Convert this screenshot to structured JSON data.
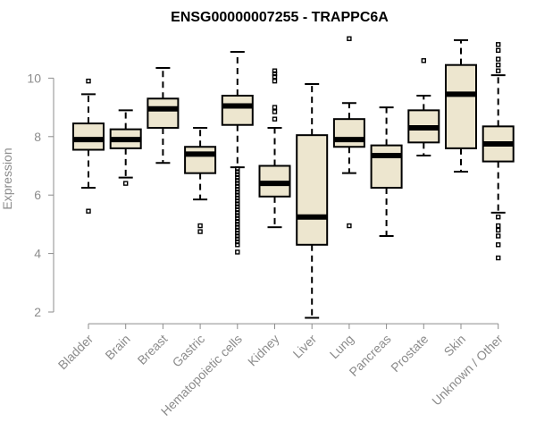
{
  "chart_data": {
    "type": "box",
    "title": "ENSG00000007255 - TRAPPC6A",
    "xlabel": "",
    "ylabel": "Expression",
    "ylim": [
      1.6,
      12.0
    ],
    "yticks": [
      2,
      4,
      6,
      8,
      10
    ],
    "box_color": "#ede6cf",
    "categories": [
      "Bladder",
      "Brain",
      "Breast",
      "Gastric",
      "Hematopoietic cells",
      "Kidney",
      "Liver",
      "Lung",
      "Pancreas",
      "Prostate",
      "Skin",
      "Unknown / Other"
    ],
    "boxes": [
      {
        "min": 6.25,
        "q1": 7.55,
        "median": 7.9,
        "q3": 8.45,
        "max": 9.45,
        "outliers": [
          9.9,
          5.45
        ]
      },
      {
        "min": 6.6,
        "q1": 7.6,
        "median": 7.9,
        "q3": 8.25,
        "max": 8.9,
        "outliers": [
          6.4
        ]
      },
      {
        "min": 7.1,
        "q1": 8.3,
        "median": 8.95,
        "q3": 9.3,
        "max": 10.35,
        "outliers": []
      },
      {
        "min": 5.85,
        "q1": 6.75,
        "median": 7.4,
        "q3": 7.65,
        "max": 8.3,
        "outliers": [
          4.95,
          4.75
        ]
      },
      {
        "min": 6.95,
        "q1": 8.4,
        "median": 9.05,
        "q3": 9.4,
        "max": 10.9,
        "outliers": [
          6.9,
          6.8,
          6.7,
          6.6,
          6.5,
          6.4,
          6.3,
          6.2,
          6.1,
          6.0,
          5.9,
          5.8,
          5.7,
          5.6,
          5.5,
          5.4,
          5.3,
          5.2,
          5.1,
          5.0,
          4.9,
          4.8,
          4.7,
          4.6,
          4.5,
          4.4,
          4.3,
          4.05
        ]
      },
      {
        "min": 4.9,
        "q1": 5.95,
        "median": 6.4,
        "q3": 7.0,
        "max": 8.3,
        "outliers": [
          10.25,
          10.15,
          10.05,
          9.9,
          9.0,
          8.85,
          8.6
        ]
      },
      {
        "min": 1.8,
        "q1": 4.3,
        "median": 5.25,
        "q3": 8.05,
        "max": 9.8,
        "outliers": []
      },
      {
        "min": 6.75,
        "q1": 7.65,
        "median": 7.9,
        "q3": 8.6,
        "max": 9.15,
        "outliers": [
          11.35,
          4.95
        ]
      },
      {
        "min": 4.6,
        "q1": 6.25,
        "median": 7.35,
        "q3": 7.7,
        "max": 9.0,
        "outliers": []
      },
      {
        "min": 7.35,
        "q1": 7.8,
        "median": 8.3,
        "q3": 8.9,
        "max": 9.4,
        "outliers": [
          10.6
        ]
      },
      {
        "min": 6.8,
        "q1": 7.6,
        "median": 9.45,
        "q3": 10.45,
        "max": 11.3,
        "outliers": []
      },
      {
        "min": 5.4,
        "q1": 7.15,
        "median": 7.75,
        "q3": 8.35,
        "max": 10.1,
        "outliers": [
          11.15,
          10.95,
          10.65,
          10.45,
          10.25,
          5.25,
          4.95,
          4.8,
          4.6,
          4.3,
          3.85
        ]
      }
    ]
  }
}
